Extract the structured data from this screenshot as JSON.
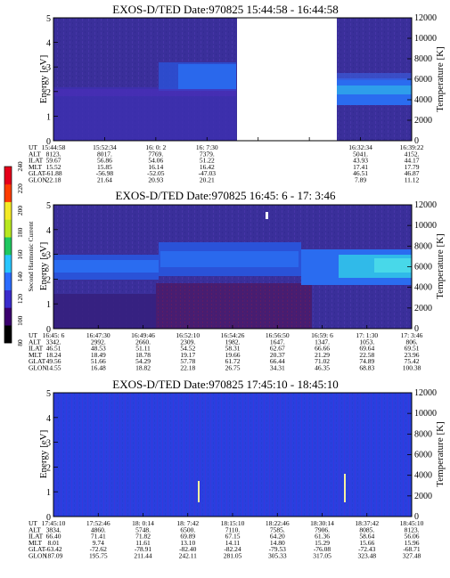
{
  "colors": {
    "spectrogram_background": "#3a2f9a",
    "data_gap": "#ffffff",
    "low_energy_band": "#2a6cf0",
    "high_flux": "#31c8e8",
    "panel3_background": "#2a3fe0"
  },
  "colorbar": {
    "label": "Second Harmonic Current",
    "ticks": [
      "80",
      "100",
      "120",
      "140",
      "160",
      "180",
      "200",
      "220",
      "240"
    ],
    "colors": [
      "#000000",
      "#3b006e",
      "#3a2ccc",
      "#2b6cff",
      "#28c6ff",
      "#1fc860",
      "#b8e81f",
      "#f4ea26",
      "#ff3c00",
      "#e6001a"
    ]
  },
  "chart_data": [
    {
      "type": "heatmap",
      "title": "EXOS-D/TED   Date:970825   15:44:58 - 16:44:58",
      "ylabel": "Energy [eV]",
      "y2label": "Temperature [K]",
      "ylim": [
        0,
        5
      ],
      "y2lim": [
        0,
        12000
      ],
      "yticks": [
        "0",
        "1",
        "2",
        "3",
        "4",
        "5"
      ],
      "y2ticks": [
        "0",
        "2000",
        "4000",
        "6000",
        "8000",
        "10000",
        "12000"
      ],
      "data_gap": true,
      "ephemeris": {
        "labels": [
          "UT",
          "ALT",
          "ILAT",
          "MLT",
          "GLAT",
          "GLON"
        ],
        "columns": [
          [
            "15:44:58",
            "8123.",
            "59.67",
            "15.52",
            "-61.88",
            "22.18"
          ],
          [
            "15:52:34",
            "8017.",
            "56.86",
            "15.85",
            "-56.98",
            "21.64"
          ],
          [
            "16: 0: 2",
            "7769.",
            "54.06",
            "16.14",
            "-52.05",
            "20.93"
          ],
          [
            "16: 7:30",
            "7379.",
            "51.22",
            "16.42",
            "-47.03",
            "20.21"
          ],
          [
            "",
            "",
            "",
            "",
            "",
            ""
          ],
          [
            "",
            "",
            "",
            "",
            "",
            ""
          ],
          [
            "16:32:34",
            "5041.",
            "43.93",
            "17.41",
            "46.51",
            "7.89"
          ],
          [
            "16:39:22",
            "4152.",
            "44.17",
            "17.79",
            "46.87",
            "11.12"
          ]
        ]
      }
    },
    {
      "type": "heatmap",
      "title": "EXOS-D/TED   Date:970825   16:45: 6 - 17: 3:46",
      "ylabel": "Energy [eV]",
      "y2label": "Temperature [K]",
      "ylim": [
        0,
        5
      ],
      "y2lim": [
        0,
        12000
      ],
      "yticks": [
        "0",
        "1",
        "2",
        "3",
        "4",
        "5"
      ],
      "y2ticks": [
        "0",
        "2000",
        "4000",
        "6000",
        "8000",
        "10000",
        "12000"
      ],
      "ephemeris": {
        "labels": [
          "UT",
          "ALT",
          "ILAT",
          "MLT",
          "GLAT",
          "GLON"
        ],
        "columns": [
          [
            "16:45: 6",
            "3342.",
            "46.51",
            "18.24",
            "49.56",
            "14.55"
          ],
          [
            "16:47:30",
            "2992.",
            "48.53",
            "18.49",
            "51.66",
            "16.48"
          ],
          [
            "16:49:46",
            "2660.",
            "51.11",
            "18.78",
            "54.29",
            "18.82"
          ],
          [
            "16:52:10",
            "2309.",
            "54.52",
            "19.17",
            "57.78",
            "22.18"
          ],
          [
            "16:54:26",
            "1982.",
            "58.31",
            "19.66",
            "61.72",
            "26.75"
          ],
          [
            "16:56:50",
            "1647.",
            "62.67",
            "20.37",
            "66.44",
            "34.31"
          ],
          [
            "16:59: 6",
            "1347.",
            "66.66",
            "21.29",
            "71.02",
            "46.35"
          ],
          [
            "17: 1:30",
            "1053.",
            "69.64",
            "22.58",
            "74.89",
            "68.83"
          ],
          [
            "17: 3:46",
            "806.",
            "69.51",
            "23.96",
            "75.42",
            "100.38"
          ]
        ]
      }
    },
    {
      "type": "heatmap",
      "title": "EXOS-D/TED   Date:970825   17:45:10 - 18:45:10",
      "ylabel": "Energy [eV]",
      "y2label": "Temperature [K]",
      "ylim": [
        0,
        5
      ],
      "y2lim": [
        0,
        12000
      ],
      "yticks": [
        "0",
        "1",
        "2",
        "3",
        "4",
        "5"
      ],
      "y2ticks": [
        "0",
        "2000",
        "4000",
        "6000",
        "8000",
        "10000",
        "12000"
      ],
      "ephemeris": {
        "labels": [
          "UT",
          "ALT",
          "ILAT",
          "MLT",
          "GLAT",
          "GLON"
        ],
        "columns": [
          [
            "17:45:10",
            "3834.",
            "66.40",
            "8.01",
            "-63.42",
            "187.09"
          ],
          [
            "17:52:46",
            "4860.",
            "71.41",
            "9.74",
            "-72.62",
            "195.75"
          ],
          [
            "18: 0:14",
            "5748.",
            "71.82",
            "11.61",
            "-78.91",
            "211.44"
          ],
          [
            "18: 7:42",
            "6500.",
            "69.89",
            "13.10",
            "-82.40",
            "242.11"
          ],
          [
            "18:15:10",
            "7110.",
            "67.15",
            "14.11",
            "-82.24",
            "281.05"
          ],
          [
            "18:22:46",
            "7585.",
            "64.20",
            "14.80",
            "-79.53",
            "305.33"
          ],
          [
            "18:30:14",
            "7906.",
            "61.36",
            "15.29",
            "-76.08",
            "317.05"
          ],
          [
            "18:37:42",
            "8085.",
            "58.64",
            "15.66",
            "-72.43",
            "323.48"
          ],
          [
            "18:45:10",
            "8123.",
            "56.06",
            "15.96",
            "-68.71",
            "327.48"
          ]
        ]
      }
    }
  ]
}
